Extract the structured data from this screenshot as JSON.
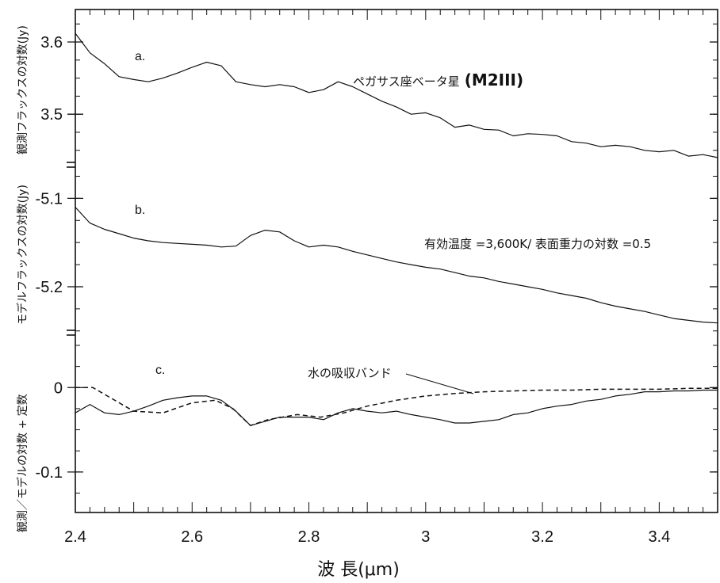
{
  "chart_data": {
    "type": "line",
    "xlabel": "波 長(μm)",
    "x_ticks": [
      "2.4",
      "2.6",
      "2.8",
      "3",
      "3.2",
      "3.4"
    ],
    "xlim": [
      2.4,
      3.5
    ],
    "panels": [
      {
        "id": "a",
        "tag": "a.",
        "ylabel": "観測フラックスの対数(Jy)",
        "y_ticks": [
          "3.6",
          "3.5"
        ],
        "y_tick_values": [
          3.6,
          3.5
        ],
        "ylim": [
          3.43,
          3.645
        ],
        "annotation": "ペガサス座ベータ星",
        "annotation_bold": "(M2III)",
        "series": [
          {
            "style": "solid",
            "x": [
              2.4,
              2.425,
              2.45,
              2.475,
              2.5,
              2.525,
              2.55,
              2.575,
              2.6,
              2.625,
              2.65,
              2.675,
              2.7,
              2.725,
              2.75,
              2.775,
              2.8,
              2.825,
              2.85,
              2.875,
              2.9,
              2.925,
              2.95,
              2.975,
              3.0,
              3.025,
              3.05,
              3.075,
              3.1,
              3.125,
              3.15,
              3.175,
              3.2,
              3.225,
              3.25,
              3.275,
              3.3,
              3.325,
              3.35,
              3.375,
              3.4,
              3.425,
              3.45,
              3.475,
              3.5
            ],
            "y": [
              3.612,
              3.585,
              3.57,
              3.552,
              3.548,
              3.545,
              3.55,
              3.557,
              3.565,
              3.572,
              3.567,
              3.545,
              3.541,
              3.538,
              3.541,
              3.538,
              3.53,
              3.534,
              3.545,
              3.538,
              3.528,
              3.518,
              3.51,
              3.5,
              3.502,
              3.495,
              3.482,
              3.485,
              3.479,
              3.478,
              3.47,
              3.473,
              3.472,
              3.47,
              3.462,
              3.46,
              3.455,
              3.457,
              3.455,
              3.45,
              3.448,
              3.45,
              3.442,
              3.444,
              3.44
            ]
          }
        ]
      },
      {
        "id": "b",
        "tag": "b.",
        "ylabel": "モデルフラックスの対数(Jy)",
        "y_ticks": [
          "-5.1",
          "-5.2"
        ],
        "y_tick_values": [
          -5.1,
          -5.2
        ],
        "ylim": [
          -5.252,
          -5.062
        ],
        "annotation": "有効温度 =3,600K/ 表面重力の対数 =0.5",
        "series": [
          {
            "style": "solid",
            "x": [
              2.4,
              2.425,
              2.45,
              2.475,
              2.5,
              2.525,
              2.55,
              2.575,
              2.6,
              2.625,
              2.65,
              2.675,
              2.7,
              2.725,
              2.75,
              2.775,
              2.8,
              2.825,
              2.85,
              2.875,
              2.9,
              2.925,
              2.95,
              2.975,
              3.0,
              3.025,
              3.05,
              3.075,
              3.1,
              3.125,
              3.15,
              3.175,
              3.2,
              3.225,
              3.25,
              3.275,
              3.3,
              3.325,
              3.35,
              3.375,
              3.4,
              3.425,
              3.45,
              3.475,
              3.5
            ],
            "y": [
              -5.11,
              -5.128,
              -5.135,
              -5.14,
              -5.145,
              -5.148,
              -5.15,
              -5.151,
              -5.152,
              -5.153,
              -5.155,
              -5.154,
              -5.142,
              -5.136,
              -5.138,
              -5.148,
              -5.155,
              -5.153,
              -5.155,
              -5.16,
              -5.164,
              -5.168,
              -5.172,
              -5.175,
              -5.178,
              -5.18,
              -5.184,
              -5.188,
              -5.19,
              -5.194,
              -5.197,
              -5.2,
              -5.203,
              -5.207,
              -5.21,
              -5.213,
              -5.218,
              -5.222,
              -5.225,
              -5.228,
              -5.232,
              -5.236,
              -5.238,
              -5.24,
              -5.241
            ]
          }
        ]
      },
      {
        "id": "c",
        "tag": "c.",
        "ylabel": "観測／モデルの対数 + 定数",
        "y_ticks": [
          "0",
          "-0.1"
        ],
        "y_tick_values": [
          0,
          -0.1
        ],
        "ylim": [
          -0.148,
          0.065
        ],
        "annotation": "水の吸収バンド",
        "series": [
          {
            "name": "観測／モデル",
            "style": "solid",
            "x": [
              2.4,
              2.425,
              2.45,
              2.475,
              2.5,
              2.525,
              2.55,
              2.575,
              2.6,
              2.625,
              2.65,
              2.675,
              2.7,
              2.725,
              2.75,
              2.775,
              2.8,
              2.825,
              2.85,
              2.875,
              2.9,
              2.925,
              2.95,
              2.975,
              3.0,
              3.025,
              3.05,
              3.075,
              3.1,
              3.125,
              3.15,
              3.175,
              3.2,
              3.225,
              3.25,
              3.275,
              3.3,
              3.325,
              3.35,
              3.375,
              3.4,
              3.425,
              3.45,
              3.475,
              3.5
            ],
            "y": [
              -0.03,
              -0.02,
              -0.03,
              -0.032,
              -0.028,
              -0.022,
              -0.015,
              -0.012,
              -0.01,
              -0.01,
              -0.015,
              -0.028,
              -0.045,
              -0.04,
              -0.035,
              -0.035,
              -0.035,
              -0.038,
              -0.03,
              -0.025,
              -0.028,
              -0.03,
              -0.028,
              -0.032,
              -0.035,
              -0.038,
              -0.042,
              -0.042,
              -0.04,
              -0.038,
              -0.032,
              -0.03,
              -0.025,
              -0.022,
              -0.02,
              -0.016,
              -0.014,
              -0.01,
              -0.008,
              -0.005,
              -0.005,
              -0.004,
              -0.004,
              -0.003,
              -0.003
            ]
          },
          {
            "name": "水の吸収バンド",
            "style": "dashed",
            "x": [
              2.4,
              2.43,
              2.46,
              2.5,
              2.55,
              2.6,
              2.64,
              2.67,
              2.7,
              2.73,
              2.78,
              2.82,
              2.86,
              2.9,
              2.95,
              3.0,
              3.05,
              3.1,
              3.15,
              3.2,
              3.25,
              3.3,
              3.35,
              3.4,
              3.45,
              3.5
            ],
            "y": [
              0.0,
              0.0,
              -0.012,
              -0.028,
              -0.03,
              -0.018,
              -0.015,
              -0.025,
              -0.045,
              -0.038,
              -0.032,
              -0.035,
              -0.03,
              -0.022,
              -0.015,
              -0.01,
              -0.007,
              -0.005,
              -0.004,
              -0.003,
              -0.003,
              -0.002,
              -0.002,
              -0.002,
              -0.001,
              -0.001
            ]
          }
        ]
      }
    ]
  }
}
